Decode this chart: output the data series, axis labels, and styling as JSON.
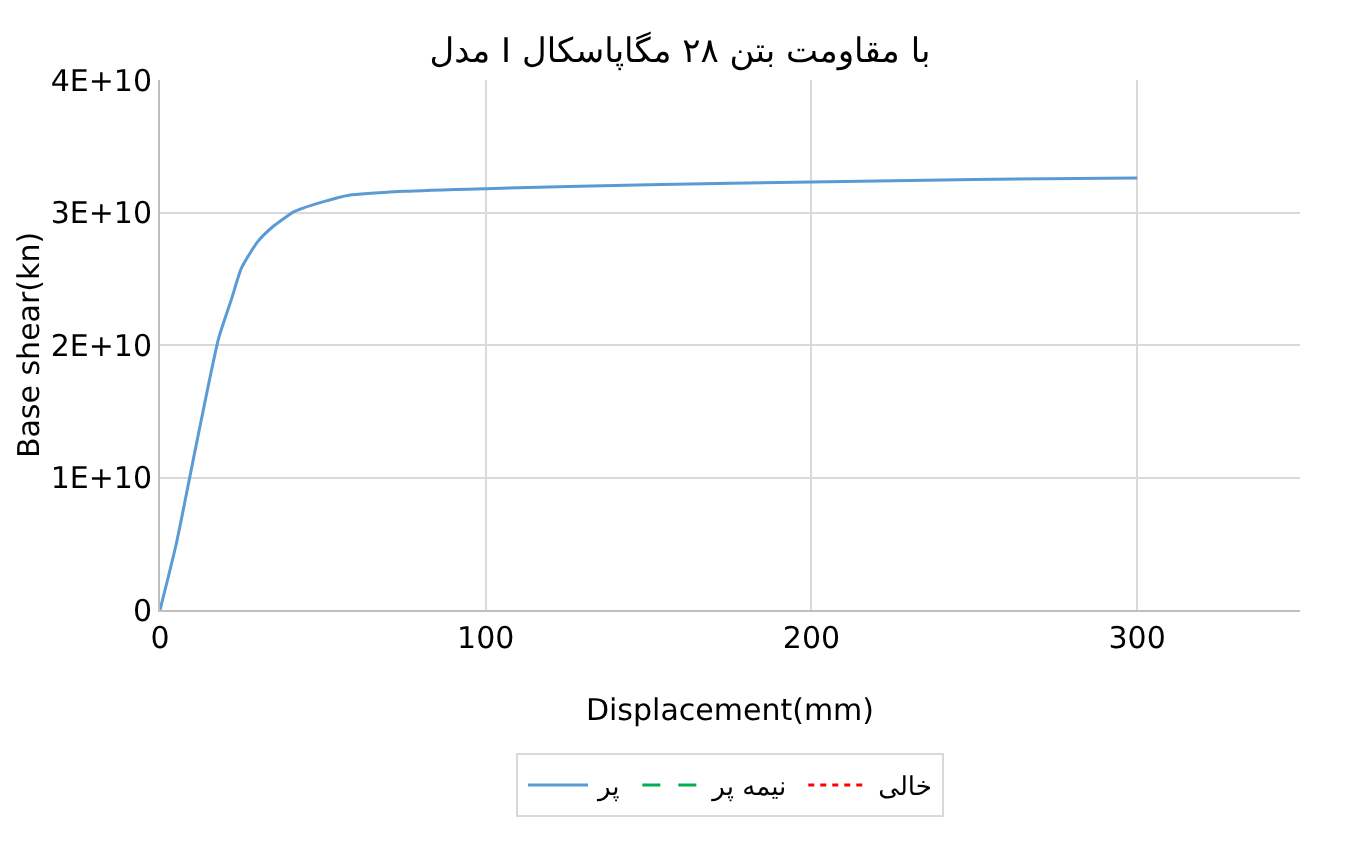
{
  "chart_data": {
    "type": "line",
    "title": "مدل I با مقاومت بتن ۲۸ مگاپاسکال",
    "xlabel": "Displacement(mm)",
    "ylabel": "Base shear(kn)",
    "x": [
      0,
      5,
      11.4,
      18,
      22,
      25,
      30,
      35,
      41.5,
      50,
      58,
      75,
      100,
      150,
      200,
      250,
      300
    ],
    "series": [
      {
        "name": "پر",
        "color": "#5b9bd5",
        "line_style": "solid",
        "values": [
          0,
          5000000000,
          12800000000,
          20500000000,
          23500000000,
          25800000000,
          27800000000,
          29000000000,
          30100000000,
          30800000000,
          31300000000,
          31600000000,
          31800000000,
          32100000000,
          32300000000,
          32500000000,
          32600000000
        ]
      },
      {
        "name": "نیمه پر",
        "color": "#00b050",
        "line_style": "dashed",
        "values": [
          null,
          null,
          null,
          null,
          null,
          null,
          null,
          null,
          null,
          null,
          null,
          null,
          null,
          null,
          null,
          null,
          null
        ]
      },
      {
        "name": "خالی",
        "color": "#ff0000",
        "line_style": "dotted",
        "values": [
          null,
          null,
          null,
          null,
          null,
          null,
          null,
          null,
          null,
          null,
          null,
          null,
          null,
          null,
          null,
          null,
          null
        ]
      }
    ],
    "xlim": [
      0,
      350
    ],
    "xticks": [
      0,
      100,
      200,
      300
    ],
    "ylim": [
      0,
      40000000000
    ],
    "yticks": [
      0,
      {
        "value": 10000000000,
        "label": "1E+10"
      },
      {
        "value": 20000000000,
        "label": "2E+10"
      },
      {
        "value": 30000000000,
        "label": "3E+10"
      },
      {
        "value": 40000000000,
        "label": "4E+10"
      }
    ],
    "grid": true,
    "legend": "bottom",
    "marker": "none"
  }
}
